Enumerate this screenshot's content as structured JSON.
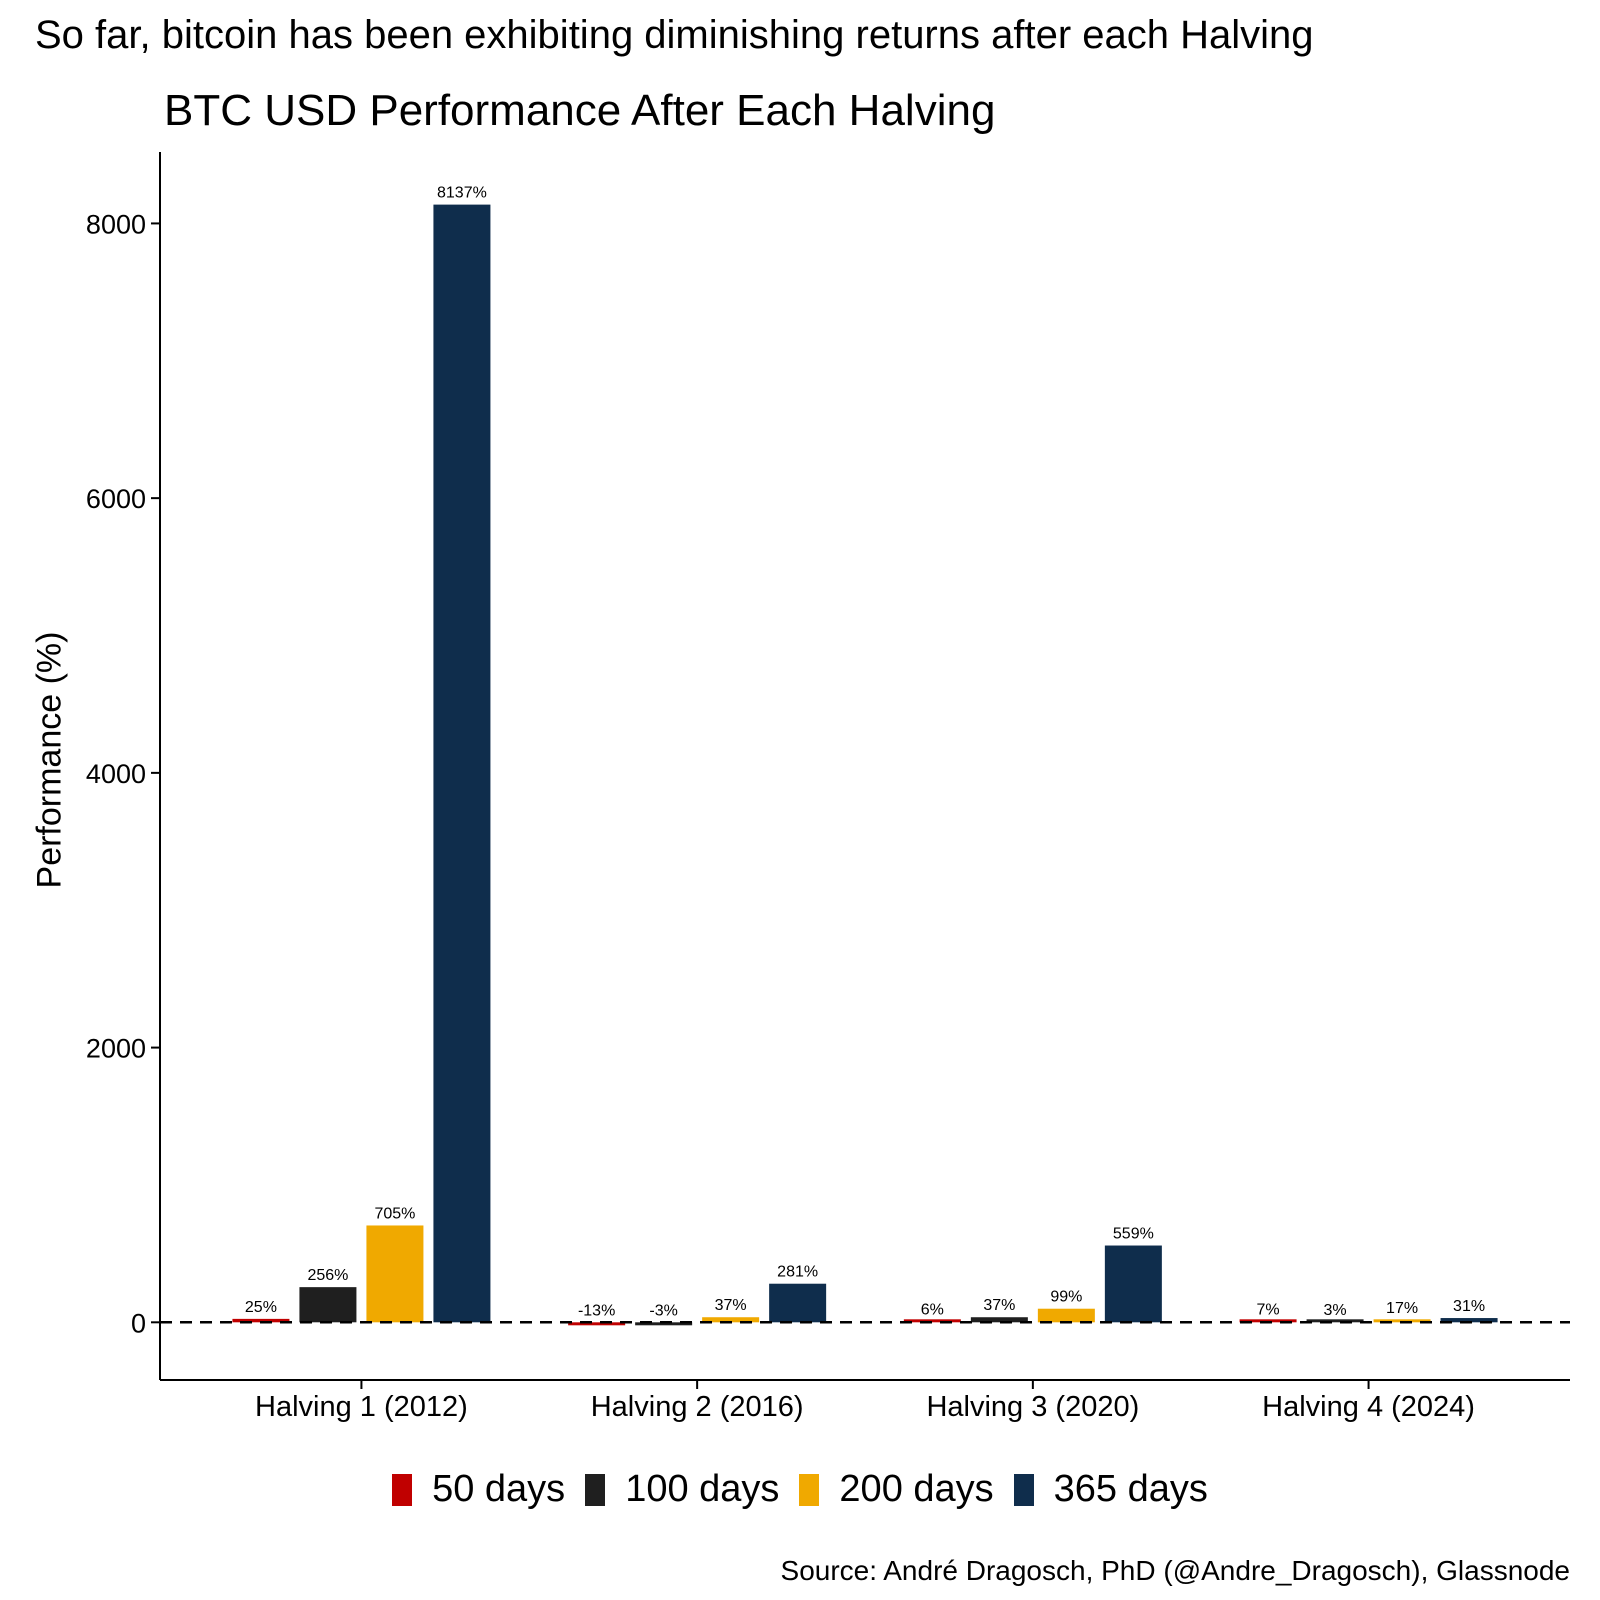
{
  "page": {
    "headline": "So far, bitcoin has been exhibiting diminishing returns after each Halving",
    "caption": "Source: André Dragosch, PhD (@Andre_Dragosch), Glassnode"
  },
  "chart_data": {
    "type": "bar",
    "title": "BTC USD Performance After Each Halving",
    "xlabel": "",
    "ylabel": "Performance (%)",
    "ylim": [
      -420,
      8520
    ],
    "yticks": [
      0,
      2000,
      4000,
      6000,
      8000
    ],
    "ytick_labels": [
      "0",
      "2000",
      "4000",
      "6000",
      "8000"
    ],
    "grid": false,
    "legend_position": "bottom",
    "zero_line": "dashed",
    "categories": [
      "Halving 1 (2012)",
      "Halving 2 (2016)",
      "Halving 3 (2020)",
      "Halving 4 (2024)"
    ],
    "series": [
      {
        "name": "50 days",
        "color": "#C00000",
        "values": [
          25,
          -13,
          6,
          7
        ],
        "labels": [
          "25%",
          "-13%",
          "6%",
          "7%"
        ]
      },
      {
        "name": "100 days",
        "color": "#1F1F1F",
        "values": [
          256,
          -3,
          37,
          3
        ],
        "labels": [
          "256%",
          "-3%",
          "37%",
          "3%"
        ]
      },
      {
        "name": "200 days",
        "color": "#F0A900",
        "values": [
          705,
          37,
          99,
          17
        ],
        "labels": [
          "705%",
          "37%",
          "99%",
          "17%"
        ]
      },
      {
        "name": "365 days",
        "color": "#0F2D4C",
        "values": [
          8137,
          281,
          559,
          31
        ],
        "labels": [
          "8137%",
          "281%",
          "559%",
          "31%"
        ]
      }
    ]
  }
}
